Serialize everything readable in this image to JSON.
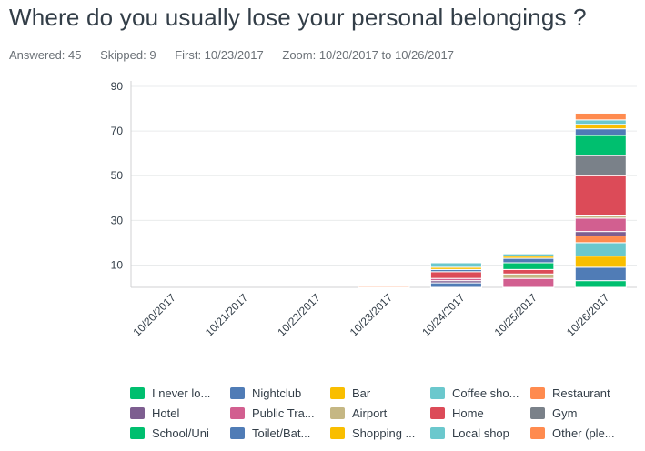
{
  "header": {
    "title": "Where do you usually lose your personal belongings ?",
    "answered": "Answered: 45",
    "skipped": "Skipped: 9",
    "first": "First: 10/23/2017",
    "zoom": "Zoom: 10/20/2017 to 10/26/2017"
  },
  "chart_data": {
    "type": "bar",
    "stacked": true,
    "categories": [
      "10/20/2017",
      "10/21/2017",
      "10/22/2017",
      "10/23/2017",
      "10/24/2017",
      "10/25/2017",
      "10/26/2017"
    ],
    "yticks": [
      10,
      30,
      50,
      70,
      90
    ],
    "ylim": [
      0,
      90
    ],
    "grid": true,
    "legend_position": "bottom",
    "series": [
      {
        "name": "I never lo...",
        "color": "#00bf6f",
        "values": [
          0,
          0,
          0,
          0,
          0,
          0,
          3
        ]
      },
      {
        "name": "Nightclub",
        "color": "#507cb6",
        "values": [
          0,
          0,
          0,
          0,
          2,
          0,
          6
        ]
      },
      {
        "name": "Bar",
        "color": "#f9be00",
        "values": [
          0,
          0,
          0,
          0,
          0,
          0,
          5
        ]
      },
      {
        "name": "Coffee sho...",
        "color": "#6bc8cd",
        "values": [
          0,
          0,
          0,
          0,
          0,
          0,
          6
        ]
      },
      {
        "name": "Restaurant",
        "color": "#ff8b4f",
        "values": [
          0,
          0,
          0,
          0,
          0,
          0,
          3
        ]
      },
      {
        "name": "Hotel",
        "color": "#7d5e90",
        "values": [
          0,
          0,
          0,
          0,
          1,
          0,
          2
        ]
      },
      {
        "name": "Public Tra...",
        "color": "#d25f90",
        "values": [
          0,
          0,
          0,
          0,
          1,
          4,
          6
        ]
      },
      {
        "name": "Airport",
        "color": "#c5b784",
        "values": [
          0,
          0,
          0,
          0,
          0,
          2,
          1
        ]
      },
      {
        "name": "Home",
        "color": "#dc4b58",
        "values": [
          0,
          0,
          0,
          0,
          3,
          2,
          18
        ]
      },
      {
        "name": "Gym",
        "color": "#7a8189",
        "values": [
          0,
          0,
          0,
          0,
          0,
          0,
          9
        ]
      },
      {
        "name": "School/Uni",
        "color": "#00bf6f",
        "values": [
          0,
          0,
          0,
          0,
          0,
          3,
          9
        ]
      },
      {
        "name": "Toilet/Bat...",
        "color": "#507cb6",
        "values": [
          0,
          0,
          0,
          0,
          1,
          2,
          3
        ]
      },
      {
        "name": "Shopping ...",
        "color": "#f9be00",
        "values": [
          0,
          0,
          0,
          0,
          1,
          1,
          2
        ]
      },
      {
        "name": "Local shop",
        "color": "#6bc8cd",
        "values": [
          0,
          0,
          0,
          0,
          2,
          1,
          2
        ]
      },
      {
        "name": "Other (ple...",
        "color": "#ff8b4f",
        "values": [
          0,
          0,
          0,
          0.5,
          0,
          0,
          3
        ]
      }
    ]
  }
}
